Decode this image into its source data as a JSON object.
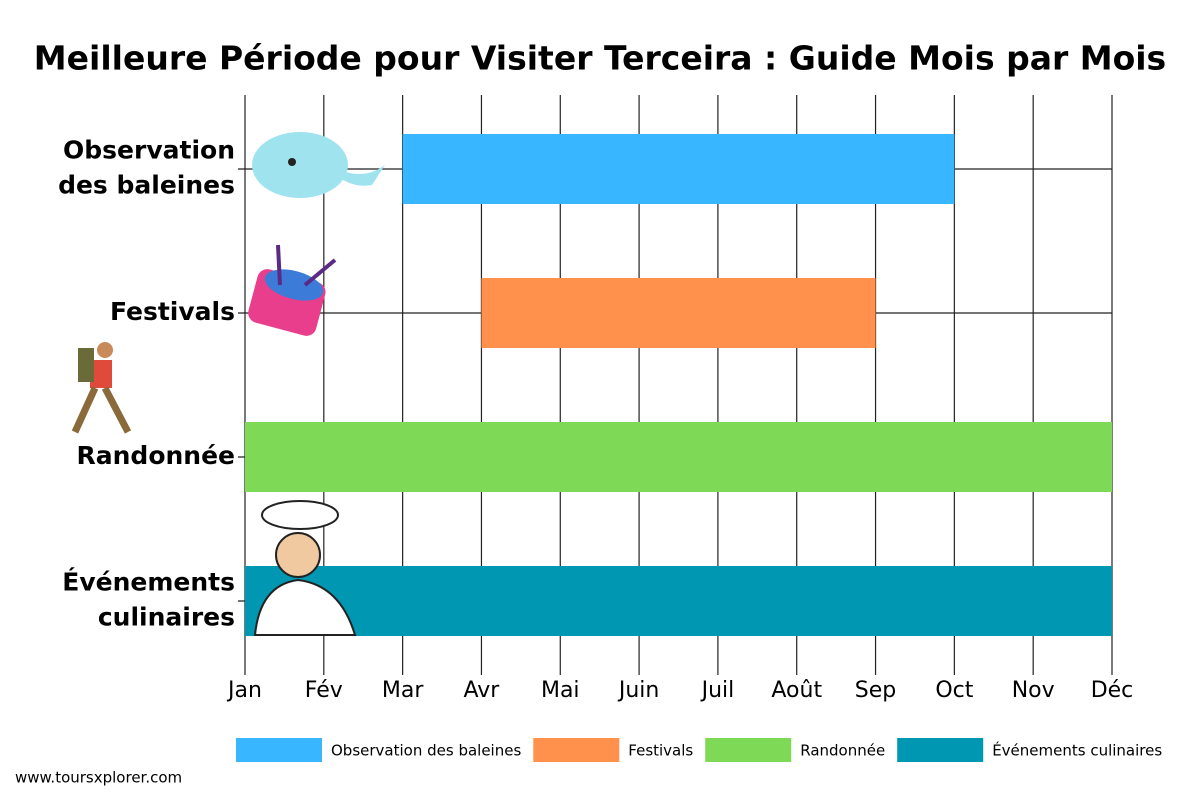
{
  "chart_data": {
    "type": "gantt",
    "title": "Meilleure Période pour Visiter Terceira : Guide Mois par Mois",
    "categories": [
      [
        "Observation",
        "des baleines"
      ],
      [
        "Festivals"
      ],
      [
        "Randonnée"
      ],
      [
        "Événements",
        "culinaires"
      ]
    ],
    "xlim": [
      0,
      11
    ],
    "xticks": [
      {
        "value": 0,
        "label": "Jan"
      },
      {
        "value": 1,
        "label": "Fév"
      },
      {
        "value": 2,
        "label": "Mar"
      },
      {
        "value": 3,
        "label": "Avr"
      },
      {
        "value": 4,
        "label": "Mai"
      },
      {
        "value": 5,
        "label": "Juin"
      },
      {
        "value": 6,
        "label": "Juil"
      },
      {
        "value": 7,
        "label": "Août"
      },
      {
        "value": 8,
        "label": "Sep"
      },
      {
        "value": 9,
        "label": "Oct"
      },
      {
        "value": 10,
        "label": "Nov"
      },
      {
        "value": 11,
        "label": "Déc"
      }
    ],
    "grid": true,
    "legend": "bottom",
    "series": [
      {
        "name": "Observation des baleines",
        "color": "#38b6ff",
        "start": 2,
        "end": 9
      },
      {
        "name": "Festivals",
        "color": "#ff914d",
        "start": 3,
        "end": 8
      },
      {
        "name": "Randonnée",
        "color": "#7ed957",
        "start": 0,
        "end": 11
      },
      {
        "name": "Événements culinaires",
        "color": "#0097b2",
        "start": 0,
        "end": 11
      }
    ],
    "source": "www.toursxplorer.com"
  }
}
